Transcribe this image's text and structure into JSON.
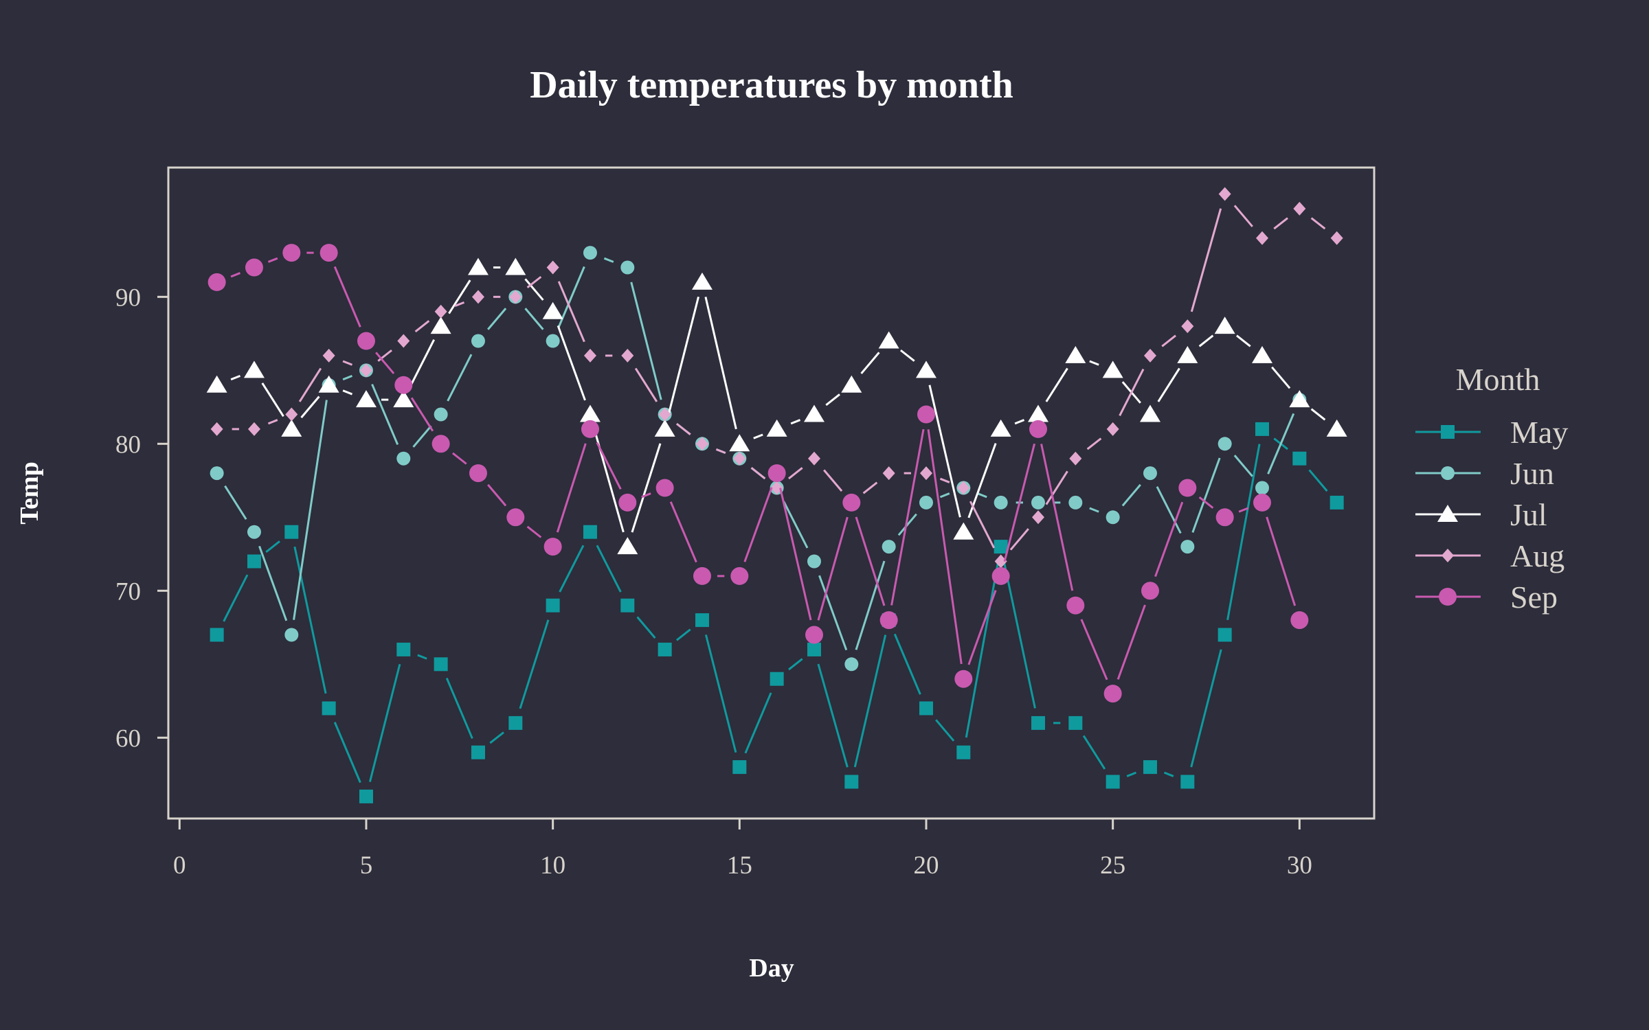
{
  "chart_data": {
    "type": "line",
    "title": "Daily temperatures by month",
    "xlabel": "Day",
    "ylabel": "Temp",
    "xlim": [
      -0.3,
      32
    ],
    "ylim": [
      54.5,
      98.8
    ],
    "xticks": [
      0,
      5,
      10,
      15,
      20,
      25,
      30
    ],
    "yticks": [
      60,
      70,
      80,
      90
    ],
    "grid": false,
    "legend_title": "Month",
    "legend_position": "right",
    "x": [
      1,
      2,
      3,
      4,
      5,
      6,
      7,
      8,
      9,
      10,
      11,
      12,
      13,
      14,
      15,
      16,
      17,
      18,
      19,
      20,
      21,
      22,
      23,
      24,
      25,
      26,
      27,
      28,
      29,
      30,
      31
    ],
    "series": [
      {
        "name": "May",
        "color": "#0f9a9e",
        "marker": "square",
        "values": [
          67,
          72,
          74,
          62,
          56,
          66,
          65,
          59,
          61,
          69,
          74,
          69,
          66,
          68,
          58,
          64,
          66,
          57,
          68,
          62,
          59,
          73,
          61,
          61,
          57,
          58,
          57,
          67,
          81,
          79,
          76
        ]
      },
      {
        "name": "Jun",
        "color": "#80cbc8",
        "marker": "circle",
        "values": [
          78,
          74,
          67,
          84,
          85,
          79,
          82,
          87,
          90,
          87,
          93,
          92,
          82,
          80,
          79,
          77,
          72,
          65,
          73,
          76,
          77,
          76,
          76,
          76,
          75,
          78,
          73,
          80,
          77,
          83,
          null
        ]
      },
      {
        "name": "Jul",
        "color": "#ffffff",
        "marker": "triangle",
        "values": [
          84,
          85,
          81,
          84,
          83,
          83,
          88,
          92,
          92,
          89,
          82,
          73,
          81,
          91,
          80,
          81,
          82,
          84,
          87,
          85,
          74,
          81,
          82,
          86,
          85,
          82,
          86,
          88,
          86,
          83,
          81
        ]
      },
      {
        "name": "Aug",
        "color": "#e3a8cf",
        "marker": "diamond",
        "values": [
          81,
          81,
          82,
          86,
          85,
          87,
          89,
          90,
          90,
          92,
          86,
          86,
          82,
          80,
          79,
          77,
          79,
          76,
          78,
          78,
          77,
          72,
          75,
          79,
          81,
          86,
          88,
          97,
          94,
          96,
          94
        ]
      },
      {
        "name": "Sep",
        "color": "#c95ab0",
        "marker": "circle-large",
        "values": [
          91,
          92,
          93,
          93,
          87,
          84,
          80,
          78,
          75,
          73,
          81,
          76,
          77,
          71,
          71,
          78,
          67,
          76,
          68,
          82,
          64,
          71,
          81,
          69,
          63,
          70,
          77,
          75,
          76,
          68,
          null
        ]
      }
    ]
  }
}
